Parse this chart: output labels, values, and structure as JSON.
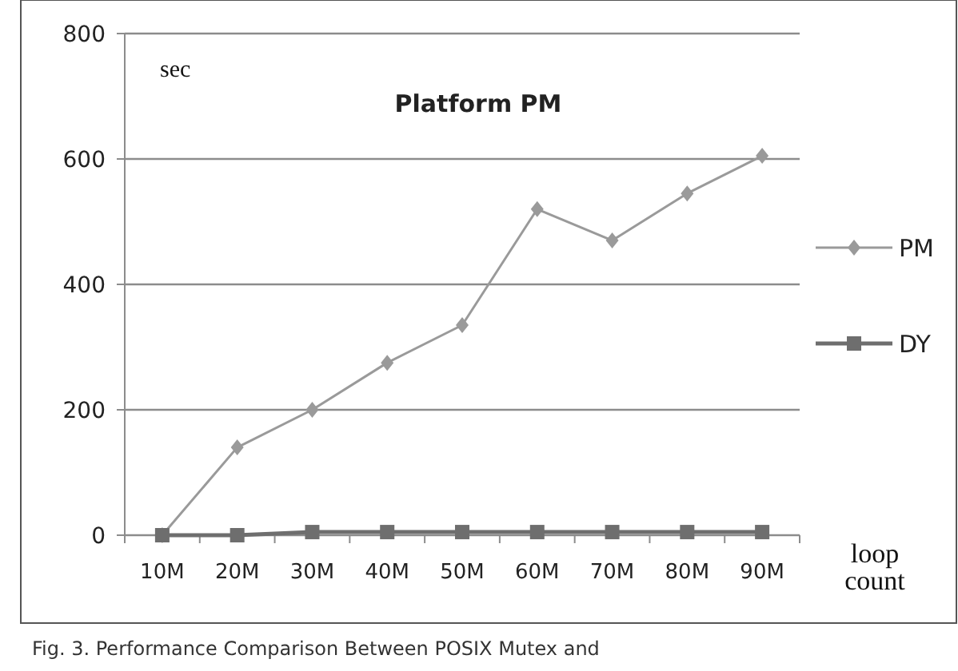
{
  "chart_data": {
    "type": "line",
    "title": "Platform  PM",
    "ylabel": "sec",
    "xlabel": "loop count",
    "categories": [
      "10M",
      "20M",
      "30M",
      "40M",
      "50M",
      "60M",
      "70M",
      "80M",
      "90M"
    ],
    "series": [
      {
        "name": "PM",
        "color": "#9a9a9a",
        "marker": "diamond",
        "values": [
          0,
          140,
          200,
          275,
          335,
          520,
          470,
          545,
          605
        ]
      },
      {
        "name": "DY",
        "color": "#6e6e6e",
        "marker": "square",
        "values": [
          0,
          0,
          5,
          5,
          5,
          5,
          5,
          5,
          5
        ]
      }
    ],
    "ylim": [
      0,
      800
    ],
    "yticks": [
      0,
      200,
      400,
      600,
      800
    ],
    "grid": "y",
    "legend": "right",
    "annotations": [
      "Fig. 3. Performance Comparison Between POSIX Mutex and"
    ]
  }
}
